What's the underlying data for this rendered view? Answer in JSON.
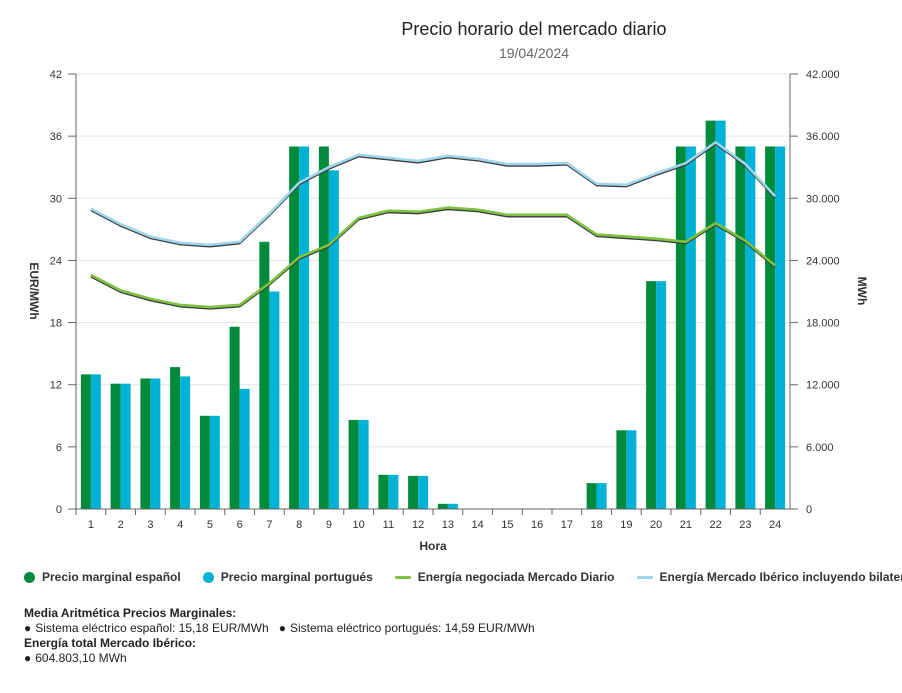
{
  "chart_data": {
    "type": "bar",
    "title": "Precio horario del mercado diario",
    "subtitle": "19/04/2024",
    "xlabel": "Hora",
    "ylabel_left": "EUR/MWh",
    "ylabel_right": "MWh",
    "categories": [
      "1",
      "2",
      "3",
      "4",
      "5",
      "6",
      "7",
      "8",
      "9",
      "10",
      "11",
      "12",
      "13",
      "14",
      "15",
      "16",
      "17",
      "18",
      "19",
      "20",
      "21",
      "22",
      "23",
      "24"
    ],
    "ylim_left": [
      0,
      42
    ],
    "yticks_left": [
      "0",
      "6",
      "12",
      "18",
      "24",
      "30",
      "36",
      "42"
    ],
    "ylim_right": [
      0,
      42000
    ],
    "yticks_right": [
      "0",
      "6.000",
      "12.000",
      "18.000",
      "24.000",
      "30.000",
      "36.000",
      "42.000"
    ],
    "grid": true,
    "legend_position": "bottom",
    "bar_series": [
      {
        "name": "Precio marginal español",
        "color": "#008a3c",
        "values": [
          13.0,
          12.1,
          12.6,
          13.7,
          9.0,
          17.6,
          25.8,
          35.0,
          35.0,
          8.6,
          3.3,
          3.2,
          0.5,
          0,
          0,
          0,
          0,
          2.5,
          7.6,
          22.0,
          35.0,
          37.5,
          35.0,
          35.0
        ]
      },
      {
        "name": "Precio marginal portugués",
        "color": "#00b2d6",
        "values": [
          13.0,
          12.1,
          12.6,
          12.8,
          9.0,
          11.6,
          21.0,
          35.0,
          32.7,
          8.6,
          3.3,
          3.2,
          0.5,
          0,
          0,
          0,
          0,
          2.5,
          7.6,
          22.0,
          35.0,
          37.5,
          35.0,
          35.0
        ]
      }
    ],
    "line_series": [
      {
        "name": "Energía negociada Mercado Diario",
        "color": "#7dc242",
        "axis": "right",
        "values": [
          22600,
          21100,
          20300,
          19700,
          19500,
          19700,
          21800,
          24300,
          25500,
          28100,
          28800,
          28700,
          29100,
          28900,
          28400,
          28400,
          28400,
          26500,
          26300,
          26100,
          25800,
          27600,
          25900,
          23500
        ]
      },
      {
        "name": "Energía Mercado Ibérico incluyendo bilaterales",
        "color": "#9fd6ec",
        "axis": "right",
        "values": [
          29000,
          27500,
          26300,
          25700,
          25500,
          25800,
          28500,
          31500,
          33000,
          34200,
          33900,
          33600,
          34100,
          33800,
          33300,
          33300,
          33400,
          31400,
          31300,
          32400,
          33400,
          35400,
          33300,
          30200
        ]
      }
    ]
  },
  "summary": {
    "prices_heading": "Media Aritmética Precios Marginales:",
    "price_es": "Sistema eléctrico español: 15,18 EUR/MWh",
    "price_pt": "Sistema eléctrico portugués: 14,59 EUR/MWh",
    "energy_heading": "Energía total Mercado Ibérico:",
    "energy_total": "604.803,10 MWh",
    "bullet": "●"
  }
}
